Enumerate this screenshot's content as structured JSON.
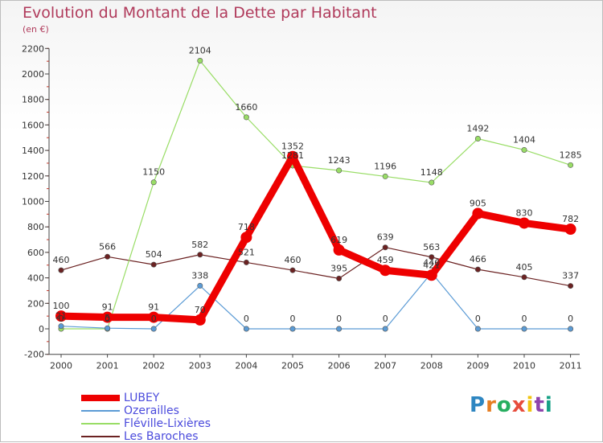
{
  "chart_data": {
    "type": "line",
    "title": "Evolution du Montant de la Dette par Habitant",
    "subtitle": "(en €)",
    "categories": [
      "2000",
      "2001",
      "2002",
      "2003",
      "2004",
      "2005",
      "2006",
      "2007",
      "2008",
      "2009",
      "2010",
      "2011"
    ],
    "ylim": [
      -200,
      2200
    ],
    "yticks": [
      -200,
      0,
      200,
      400,
      600,
      800,
      1000,
      1200,
      1400,
      1600,
      1800,
      2000,
      2200
    ],
    "grid": false,
    "legend_position": "bottom-left",
    "series": [
      {
        "name": "LUBEY",
        "color": "#ee0000",
        "values": [
          100,
          91,
          91,
          70,
          718,
          1352,
          619,
          459,
          421,
          905,
          830,
          782
        ]
      },
      {
        "name": "Ozerailles",
        "color": "#5b9bd5",
        "values": [
          21,
          5,
          0,
          338,
          0,
          0,
          0,
          0,
          440,
          0,
          0,
          0
        ]
      },
      {
        "name": "Fléville-Lixières",
        "color": "#99dd66",
        "values": [
          0,
          0,
          1150,
          2104,
          1660,
          1281,
          1243,
          1196,
          1148,
          1492,
          1404,
          1285
        ]
      },
      {
        "name": "Les Baroches",
        "color": "#6b2222",
        "values": [
          460,
          566,
          504,
          582,
          521,
          460,
          395,
          639,
          563,
          466,
          405,
          337
        ]
      }
    ]
  },
  "logo": {
    "letters": [
      "P",
      "r",
      "o",
      "x",
      "i",
      "t",
      "i"
    ],
    "colors": [
      "#2e86c1",
      "#e67e22",
      "#27ae60",
      "#e74c3c",
      "#f1c40f",
      "#8e44ad",
      "#16a085"
    ]
  }
}
